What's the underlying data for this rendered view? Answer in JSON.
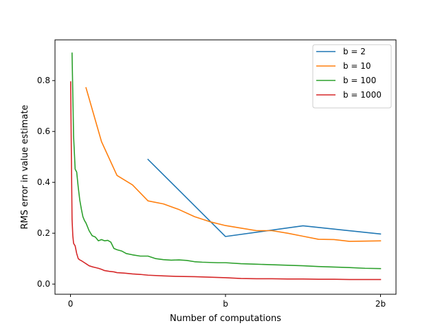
{
  "chart_data": {
    "type": "line",
    "xlabel": "Number of computations",
    "ylabel": "RMS error in value estimate",
    "xlim": [
      -0.1,
      2.1
    ],
    "ylim": [
      -0.04,
      0.96
    ],
    "x_ticks": [
      {
        "value": 0,
        "label": "0"
      },
      {
        "value": 1,
        "label": "b"
      },
      {
        "value": 2,
        "label": "2b"
      }
    ],
    "y_ticks": [
      {
        "value": 0.0,
        "label": "0.0"
      },
      {
        "value": 0.2,
        "label": "0.2"
      },
      {
        "value": 0.4,
        "label": "0.4"
      },
      {
        "value": 0.6,
        "label": "0.6"
      },
      {
        "value": 0.8,
        "label": "0.8"
      }
    ],
    "grid": false,
    "legend_position": "top-right",
    "series": [
      {
        "name": "b = 2",
        "color": "#1f77b4",
        "x": [
          0.5,
          1.0,
          1.5,
          2.0
        ],
        "y": [
          0.49,
          0.187,
          0.229,
          0.197
        ]
      },
      {
        "name": "b = 10",
        "color": "#ff7f0e",
        "x": [
          0.1,
          0.2,
          0.3,
          0.4,
          0.5,
          0.6,
          0.7,
          0.8,
          0.9,
          1.0,
          1.1,
          1.2,
          1.3,
          1.4,
          1.5,
          1.6,
          1.7,
          1.8,
          1.9,
          2.0
        ],
        "y": [
          0.772,
          0.56,
          0.427,
          0.39,
          0.327,
          0.315,
          0.293,
          0.265,
          0.245,
          0.23,
          0.22,
          0.21,
          0.21,
          0.2,
          0.188,
          0.176,
          0.175,
          0.168,
          0.169,
          0.17
        ]
      },
      {
        "name": "b = 100",
        "color": "#2ca02c",
        "x": [
          0.01,
          0.02,
          0.03,
          0.04,
          0.05,
          0.06,
          0.07,
          0.08,
          0.09,
          0.1,
          0.12,
          0.14,
          0.16,
          0.18,
          0.2,
          0.22,
          0.24,
          0.26,
          0.28,
          0.3,
          0.33,
          0.36,
          0.4,
          0.45,
          0.5,
          0.55,
          0.6,
          0.65,
          0.7,
          0.75,
          0.8,
          0.85,
          0.9,
          0.95,
          1.0,
          1.1,
          1.2,
          1.3,
          1.4,
          1.5,
          1.6,
          1.7,
          1.8,
          1.9,
          2.0
        ],
        "y": [
          0.908,
          0.58,
          0.452,
          0.44,
          0.38,
          0.33,
          0.295,
          0.265,
          0.25,
          0.24,
          0.21,
          0.19,
          0.185,
          0.17,
          0.175,
          0.17,
          0.172,
          0.165,
          0.14,
          0.135,
          0.13,
          0.12,
          0.115,
          0.11,
          0.11,
          0.1,
          0.096,
          0.094,
          0.095,
          0.093,
          0.088,
          0.086,
          0.085,
          0.084,
          0.084,
          0.08,
          0.078,
          0.076,
          0.074,
          0.072,
          0.069,
          0.067,
          0.065,
          0.062,
          0.061
        ]
      },
      {
        "name": "b = 1000",
        "color": "#d62728",
        "x": [
          0.001,
          0.005,
          0.01,
          0.015,
          0.02,
          0.025,
          0.03,
          0.04,
          0.05,
          0.06,
          0.07,
          0.08,
          0.1,
          0.12,
          0.14,
          0.16,
          0.18,
          0.2,
          0.22,
          0.25,
          0.28,
          0.3,
          0.35,
          0.4,
          0.45,
          0.5,
          0.6,
          0.7,
          0.8,
          0.9,
          1.0,
          1.1,
          1.2,
          1.3,
          1.4,
          1.5,
          1.6,
          1.7,
          1.8,
          1.9,
          2.0
        ],
        "y": [
          0.795,
          0.55,
          0.255,
          0.19,
          0.16,
          0.155,
          0.15,
          0.12,
          0.1,
          0.095,
          0.092,
          0.088,
          0.08,
          0.072,
          0.068,
          0.065,
          0.062,
          0.058,
          0.053,
          0.05,
          0.048,
          0.045,
          0.043,
          0.04,
          0.038,
          0.035,
          0.032,
          0.03,
          0.029,
          0.027,
          0.025,
          0.022,
          0.021,
          0.021,
          0.02,
          0.02,
          0.019,
          0.019,
          0.018,
          0.018,
          0.018
        ]
      }
    ]
  }
}
